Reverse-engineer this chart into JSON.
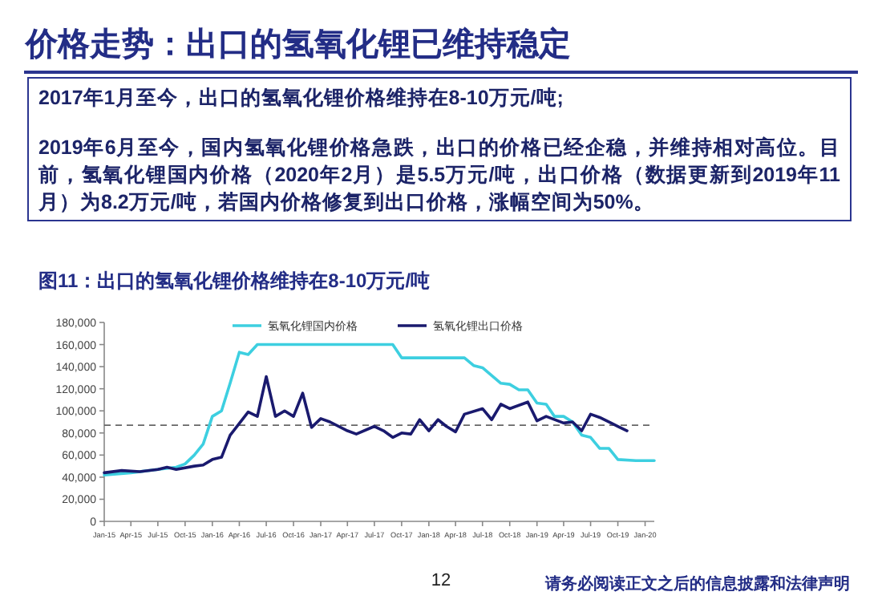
{
  "chart_data": {
    "type": "line",
    "title": "图11：出口的氢氧化锂价格维持在8-10万元/吨",
    "annotations": [
      "价格走势：出口的氢氧化锂已维持稳定",
      "2017年1月至今，出口的氢氧化锂价格维持在8-10万元/吨;",
      "2019年6月至今，国内氢氧化锂价格急跌，出口的价格已经企稳，并维持相对高位。目前，氢氧化锂国内价格（2020年2月）是5.5万元/吨，出口价格（数据更新到2019年11月）为8.2万元/吨，若国内价格修复到出口价格，涨幅空间为50%。",
      "12",
      "请务必阅读正文之后的信息披露和法律声明"
    ],
    "series": [
      {
        "name": "氢氧化锂国内价格",
        "color": "#3dcfe0",
        "x": [
          "2015-01",
          "2015-04",
          "2015-07",
          "2015-09",
          "2015-10",
          "2015-11",
          "2015-12",
          "2016-01",
          "2016-02",
          "2016-03",
          "2016-04",
          "2016-05",
          "2016-06",
          "2017-09",
          "2017-10",
          "2018-05",
          "2018-06",
          "2018-07",
          "2018-09",
          "2018-10",
          "2018-11",
          "2018-12",
          "2019-01",
          "2019-02",
          "2019-03",
          "2019-04",
          "2019-05",
          "2019-06",
          "2019-07",
          "2019-08",
          "2019-09",
          "2019-10",
          "2019-12",
          "2020-02"
        ],
        "values": [
          42000,
          44000,
          47000,
          49000,
          52000,
          60000,
          70000,
          95000,
          100000,
          125000,
          153000,
          151000,
          160000,
          160000,
          148000,
          148000,
          141000,
          139000,
          125000,
          124000,
          119000,
          119000,
          107000,
          106000,
          95000,
          95000,
          90000,
          78000,
          76000,
          66000,
          66000,
          56000,
          55000,
          55000
        ]
      },
      {
        "name": "氢氧化锂出口价格",
        "color": "#1a1a6e",
        "x": [
          "2015-01",
          "2015-03",
          "2015-05",
          "2015-07",
          "2015-08",
          "2015-09",
          "2015-11",
          "2015-12",
          "2016-01",
          "2016-02",
          "2016-03",
          "2016-05",
          "2016-06",
          "2016-07",
          "2016-08",
          "2016-09",
          "2016-10",
          "2016-11",
          "2016-12",
          "2017-01",
          "2017-02",
          "2017-04",
          "2017-05",
          "2017-07",
          "2017-08",
          "2017-09",
          "2017-10",
          "2017-11",
          "2017-12",
          "2018-01",
          "2018-02",
          "2018-03",
          "2018-04",
          "2018-05",
          "2018-07",
          "2018-08",
          "2018-09",
          "2018-10",
          "2018-12",
          "2019-01",
          "2019-02",
          "2019-04",
          "2019-05",
          "2019-06",
          "2019-07",
          "2019-08",
          "2019-10",
          "2019-11"
        ],
        "values": [
          44000,
          46000,
          45000,
          47000,
          49000,
          47000,
          50000,
          51000,
          56000,
          58000,
          78000,
          99000,
          95000,
          131000,
          95000,
          100000,
          95000,
          116000,
          85000,
          93000,
          90000,
          82000,
          79000,
          86000,
          82000,
          76000,
          80000,
          79000,
          92000,
          82000,
          92000,
          86000,
          81000,
          97000,
          102000,
          92000,
          106000,
          102000,
          108000,
          91000,
          95000,
          89000,
          90000,
          82000,
          97000,
          94000,
          86000,
          82000
        ]
      }
    ],
    "ref_lines": [
      {
        "axis": "y",
        "value": 87000,
        "color": "#666666",
        "line_style": "dashed"
      }
    ],
    "xlim": [
      "2015-01",
      "2020-02"
    ],
    "xticks": [
      {
        "value": "2015-01",
        "label": "Jan-15"
      },
      {
        "value": "2015-04",
        "label": "Apr-15"
      },
      {
        "value": "2015-07",
        "label": "Jul-15"
      },
      {
        "value": "2015-10",
        "label": "Oct-15"
      },
      {
        "value": "2016-01",
        "label": "Jan-16"
      },
      {
        "value": "2016-04",
        "label": "Apr-16"
      },
      {
        "value": "2016-07",
        "label": "Jul-16"
      },
      {
        "value": "2016-10",
        "label": "Oct-16"
      },
      {
        "value": "2017-01",
        "label": "Jan-17"
      },
      {
        "value": "2017-04",
        "label": "Apr-17"
      },
      {
        "value": "2017-07",
        "label": "Jul-17"
      },
      {
        "value": "2017-10",
        "label": "Oct-17"
      },
      {
        "value": "2018-01",
        "label": "Jan-18"
      },
      {
        "value": "2018-04",
        "label": "Apr-18"
      },
      {
        "value": "2018-07",
        "label": "Jul-18"
      },
      {
        "value": "2018-10",
        "label": "Oct-18"
      },
      {
        "value": "2019-01",
        "label": "Jan-19"
      },
      {
        "value": "2019-04",
        "label": "Apr-19"
      },
      {
        "value": "2019-07",
        "label": "Jul-19"
      },
      {
        "value": "2019-10",
        "label": "Oct-19"
      },
      {
        "value": "2020-01",
        "label": "Jan-20"
      }
    ],
    "ylim": [
      0,
      180000
    ],
    "yticks": [
      0,
      {
        "value": 20000,
        "label": "20,000"
      },
      {
        "value": 40000,
        "label": "40,000"
      },
      {
        "value": 60000,
        "label": "60,000"
      },
      {
        "value": 80000,
        "label": "80,000"
      },
      {
        "value": 100000,
        "label": "100,000"
      },
      {
        "value": 120000,
        "label": "120,000"
      },
      {
        "value": 140000,
        "label": "140,000"
      },
      {
        "value": 160000,
        "label": "160,000"
      },
      {
        "value": 180000,
        "label": "180,000"
      }
    ],
    "grid": false,
    "legend": "top",
    "marker": "none",
    "line_style": "solid"
  }
}
